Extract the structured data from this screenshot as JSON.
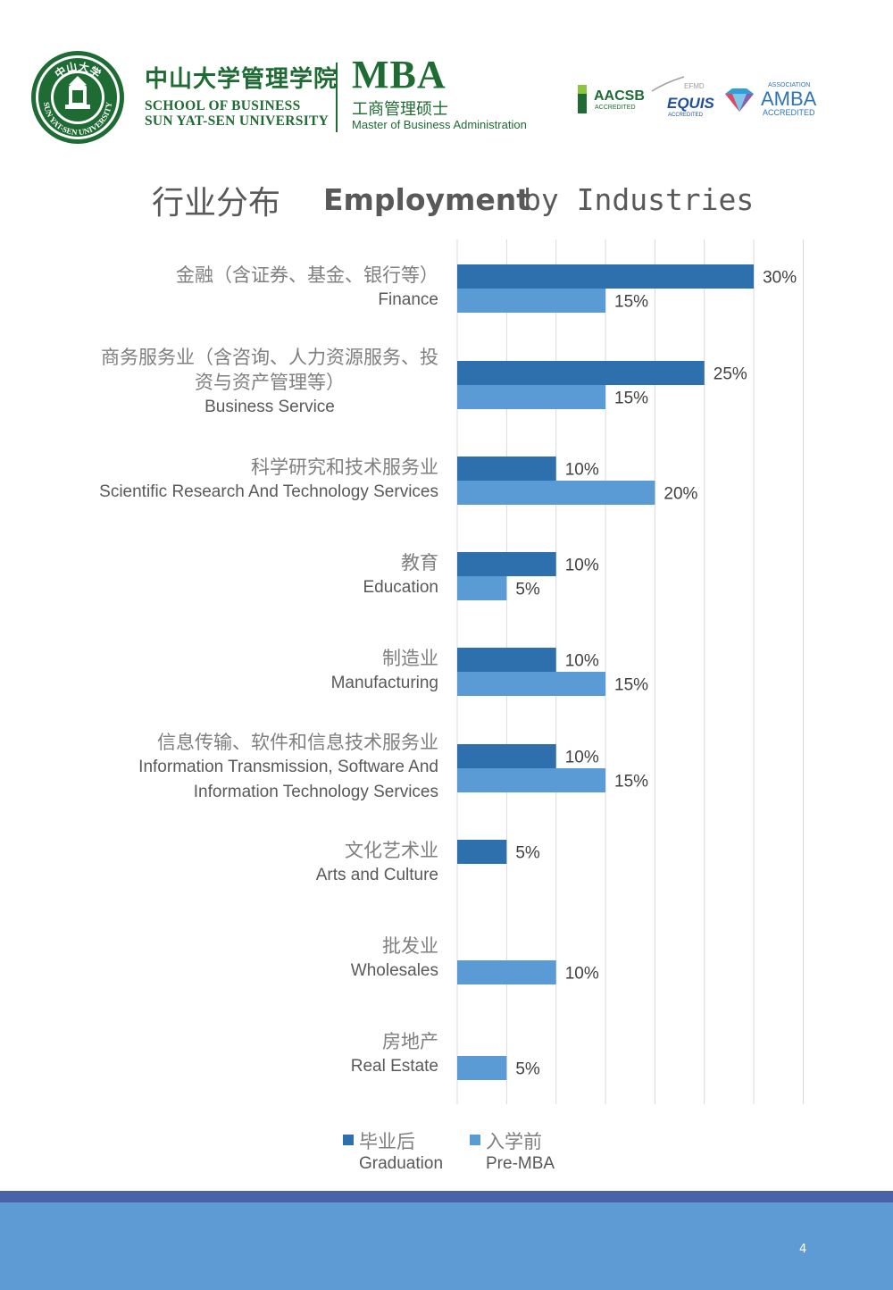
{
  "header": {
    "school_cn": "中山大学管理学院",
    "school_en_line1": "SCHOOL OF BUSINESS",
    "school_en_line2": "SUN YAT-SEN UNIVERSITY",
    "seal_cn": "中山大学",
    "seal_en": "SUN YAT-SEN UNIVERSITY",
    "mba_title": "MBA",
    "mba_cn": "工商管理硕士",
    "mba_en": "Master of Business Administration",
    "accreditations": {
      "aacsb": "AACSB",
      "aacsb_sub": "ACCREDITED",
      "efmd": "EFMD",
      "equis": "EQUIS",
      "equis_sub": "ACCREDITED",
      "amba_top": "ASSOCIATION",
      "amba": "AMBA",
      "amba_sub": "ACCREDITED"
    },
    "colors": {
      "brand_green": "#1e6b33"
    }
  },
  "title": {
    "cn": "行业分布",
    "en_bold": "Employment",
    "en_rest": "by Industries"
  },
  "chart_data": {
    "type": "bar",
    "orientation": "horizontal",
    "title": "行业分布 Employment by Industries",
    "xlim": [
      0,
      35
    ],
    "grid": true,
    "value_suffix": "%",
    "categories": [
      {
        "cn": "金融（含证券、基金、银行等）",
        "cn2": "",
        "en": "Finance",
        "en2": ""
      },
      {
        "cn": "商务服务业（含咨询、人力资源服务、投",
        "cn2": "资与资产管理等）",
        "en": "Business Service",
        "en2": ""
      },
      {
        "cn": "科学研究和技术服务业",
        "cn2": "",
        "en": "Scientific Research And Technology Services",
        "en2": ""
      },
      {
        "cn": "教育",
        "cn2": "",
        "en": "Education",
        "en2": ""
      },
      {
        "cn": "制造业",
        "cn2": "",
        "en": "Manufacturing",
        "en2": ""
      },
      {
        "cn": "信息传输、软件和信息技术服务业",
        "cn2": "",
        "en": "Information Transmission, Software And",
        "en2": "Information Technology Services"
      },
      {
        "cn": "文化艺术业",
        "cn2": "",
        "en": "Arts and Culture",
        "en2": ""
      },
      {
        "cn": "批发业",
        "cn2": "",
        "en": "Wholesales",
        "en2": ""
      },
      {
        "cn": "房地产",
        "cn2": "",
        "en": "Real Estate",
        "en2": ""
      }
    ],
    "series": [
      {
        "name_cn": "毕业后",
        "name_en": "Graduation",
        "color": "#2e6fad",
        "values": [
          30,
          25,
          10,
          10,
          10,
          10,
          5,
          null,
          null
        ]
      },
      {
        "name_cn": "入学前",
        "name_en": "Pre-MBA",
        "color": "#5b9bd5",
        "values": [
          15,
          15,
          20,
          5,
          15,
          15,
          null,
          10,
          5
        ]
      }
    ]
  },
  "footer": {
    "page_number": "4",
    "colors": {
      "stripe": "#4a62a8",
      "band": "#5e9bd5"
    }
  }
}
